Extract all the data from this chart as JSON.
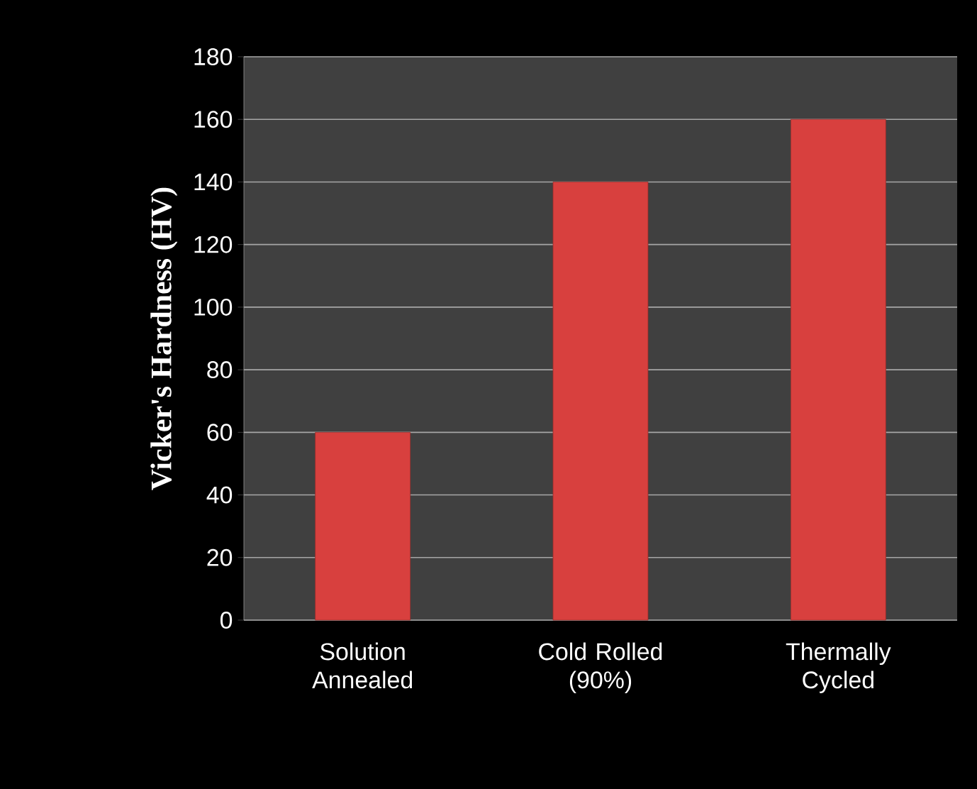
{
  "chart_data": {
    "type": "bar",
    "ylabel": "Vicker's Hardness (HV)",
    "categories": [
      "Solution Annealed",
      "Cold Rolled (90%)",
      "Thermally Cycled"
    ],
    "values": [
      60,
      140,
      160
    ],
    "color": "#d8403e",
    "ylim": [
      0,
      180
    ],
    "yticks": [
      0,
      20,
      40,
      60,
      80,
      100,
      120,
      140,
      160,
      180
    ],
    "grid": "y"
  }
}
